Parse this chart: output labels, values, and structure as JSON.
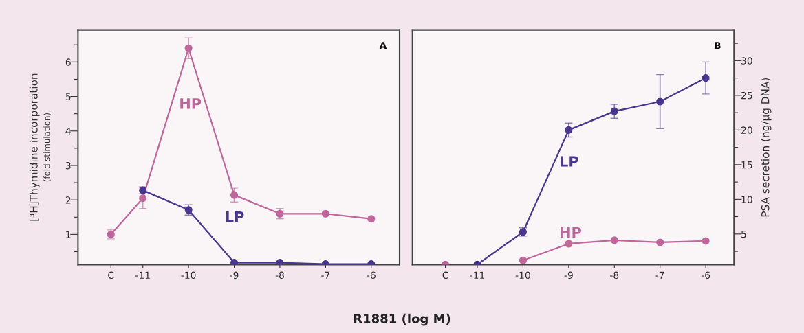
{
  "chart_data": [
    {
      "type": "line",
      "title": "A",
      "xlabel": "R1881 (log M)",
      "ylabel": "[³H]Thymidine incorporation\n(fold stimulation)",
      "x": [
        -11.7,
        -11,
        -10,
        -9,
        -8,
        -7,
        -6
      ],
      "xlim": [
        -12.42,
        -5.38
      ],
      "xticks": [
        {
          "value": -11.7,
          "label": "C"
        },
        -11,
        -10,
        -9,
        -8,
        -7,
        -6
      ],
      "ylim": [
        0.12,
        6.93
      ],
      "yticks": [
        {
          "value": 0.5,
          "label": null
        },
        1,
        {
          "value": 1.5,
          "label": null
        },
        2,
        {
          "value": 2.5,
          "label": null
        },
        3,
        {
          "value": 3.5,
          "label": null
        },
        4,
        {
          "value": 4.5,
          "label": null
        },
        5,
        {
          "value": 5.5,
          "label": null
        },
        6,
        {
          "value": 6.5,
          "label": null
        }
      ],
      "grid": false,
      "legend": false,
      "marker": "circle",
      "line_style": "solid",
      "series": [
        {
          "name": "HP",
          "color": "#c0669a",
          "values": [
            1.0,
            2.05,
            6.4,
            2.14,
            1.6,
            1.6,
            1.45
          ],
          "errors": [
            0.13,
            0.3,
            0.3,
            0.2,
            0.15,
            null,
            null
          ]
        },
        {
          "name": "LP",
          "color": "#4a3590",
          "values": [
            null,
            2.28,
            1.71,
            0.18,
            0.18,
            0.14,
            0.14
          ],
          "errors": [
            null,
            0.1,
            0.15,
            null,
            null,
            null,
            null
          ]
        }
      ]
    },
    {
      "type": "line",
      "title": "B",
      "ylabel": "PSA secretion (ng/µg DNA)",
      "x": [
        -11.7,
        -11,
        -10,
        -9,
        -8,
        -7,
        -6
      ],
      "xlim": [
        -12.42,
        -5.38
      ],
      "xticks": [
        {
          "value": -11.7,
          "label": "C"
        },
        -11,
        -10,
        -9,
        -8,
        -7,
        -6
      ],
      "ylim": [
        0.57,
        34.43
      ],
      "yticks": [
        {
          "value": 2.5,
          "label": null
        },
        5,
        {
          "value": 7.5,
          "label": null
        },
        10,
        {
          "value": 12.5,
          "label": null
        },
        15,
        {
          "value": 17.5,
          "label": null
        },
        20,
        {
          "value": 22.5,
          "label": null
        },
        25,
        {
          "value": 27.5,
          "label": null
        },
        30,
        {
          "value": 32.5,
          "label": null
        }
      ],
      "grid": false,
      "legend": false,
      "marker": "circle",
      "line_style": "solid",
      "series": [
        {
          "name": "LP",
          "color": "#4a3590",
          "values": [
            null,
            0.6,
            5.3,
            20.0,
            22.7,
            24.1,
            27.5
          ],
          "errors": [
            null,
            null,
            0.6,
            1.0,
            1.0,
            3.9,
            2.3
          ]
        },
        {
          "name": "HP",
          "color": "#c0669a",
          "values": [
            0.6,
            null,
            1.2,
            3.6,
            4.1,
            3.8,
            4.0
          ],
          "errors": [
            null,
            null,
            null,
            null,
            null,
            null,
            null
          ]
        }
      ]
    }
  ]
}
